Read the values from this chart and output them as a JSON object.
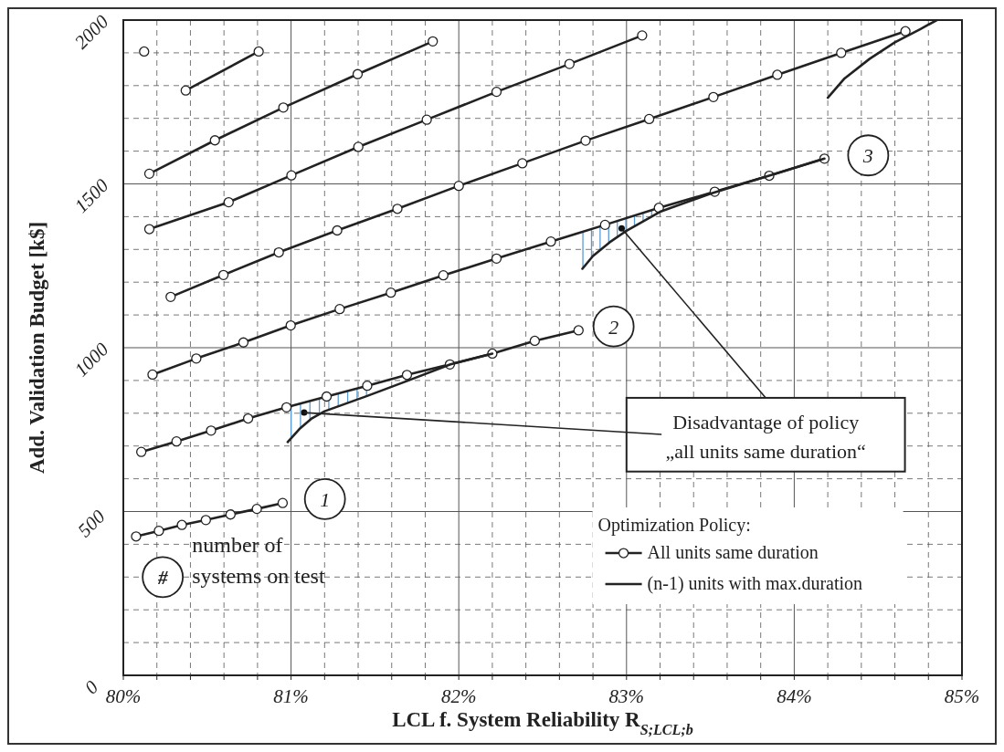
{
  "chart_data": {
    "type": "line",
    "xlabel": "LCL f. System Reliability R$_{S;LCL;b}$",
    "ylabel": "Add. Validation Budget [k$]",
    "legend_title": "Optimization Policy:",
    "legend": "bottom right",
    "marker": "circle",
    "grid": true,
    "xlim": [
      80,
      85
    ],
    "ylim": [
      0,
      2000
    ],
    "xticks": [
      {
        "value": 80,
        "label": "80%"
      },
      {
        "value": 80.2,
        "label": null
      },
      {
        "value": 80.4,
        "label": null
      },
      {
        "value": 80.6,
        "label": null
      },
      {
        "value": 80.8,
        "label": null
      },
      {
        "value": 81,
        "label": "81%"
      },
      {
        "value": 81.2,
        "label": null
      },
      {
        "value": 81.4,
        "label": null
      },
      {
        "value": 81.6,
        "label": null
      },
      {
        "value": 81.8,
        "label": null
      },
      {
        "value": 82,
        "label": "82%"
      },
      {
        "value": 82.2,
        "label": null
      },
      {
        "value": 82.4,
        "label": null
      },
      {
        "value": 82.6,
        "label": null
      },
      {
        "value": 82.8,
        "label": null
      },
      {
        "value": 83,
        "label": "83%"
      },
      {
        "value": 83.2,
        "label": null
      },
      {
        "value": 83.4,
        "label": null
      },
      {
        "value": 83.6,
        "label": null
      },
      {
        "value": 83.8,
        "label": null
      },
      {
        "value": 84,
        "label": "84%"
      },
      {
        "value": 84.2,
        "label": null
      },
      {
        "value": 84.4,
        "label": null
      },
      {
        "value": 84.6,
        "label": null
      },
      {
        "value": 84.8,
        "label": null
      },
      {
        "value": 85,
        "label": "85%"
      }
    ],
    "yticks": [
      0,
      {
        "value": 100,
        "label": null
      },
      {
        "value": 200,
        "label": null
      },
      {
        "value": 300,
        "label": null
      },
      {
        "value": 400,
        "label": null
      },
      500,
      {
        "value": 600,
        "label": null
      },
      {
        "value": 700,
        "label": null
      },
      {
        "value": 800,
        "label": null
      },
      {
        "value": 900,
        "label": null
      },
      1000,
      {
        "value": 1100,
        "label": null
      },
      {
        "value": 1200,
        "label": null
      },
      {
        "value": 1300,
        "label": null
      },
      {
        "value": 1400,
        "label": null
      },
      1500,
      {
        "value": 1600,
        "label": null
      },
      {
        "value": 1700,
        "label": null
      },
      {
        "value": 1800,
        "label": null
      },
      {
        "value": 1900,
        "label": null
      },
      2000
    ],
    "series": [
      {
        "name": "All units same duration",
        "color": "#222222",
        "x": [
          80.076,
          80.212,
          80.349,
          80.492,
          80.639,
          80.796,
          80.95
        ],
        "values": [
          424,
          441,
          459,
          474,
          491,
          508,
          526
        ]
      },
      {
        "color": "#222222",
        "x": [
          80.107,
          80.317,
          80.523,
          80.744,
          80.973,
          81.212,
          81.454,
          81.691,
          81.947,
          82.2,
          82.453,
          82.714
        ],
        "values": [
          682,
          714,
          747,
          784,
          818,
          851,
          884,
          917,
          949,
          982,
          1021,
          1053
        ]
      },
      {
        "name": "(n-1) units with max.duration",
        "color": "#222222",
        "marker": "none",
        "x": [
          80.98,
          81.05,
          81.12,
          81.2,
          81.45,
          81.7,
          81.95,
          82.2
        ],
        "values": [
          712,
          752,
          783,
          806,
          852,
          900,
          949,
          982
        ]
      },
      {
        "color": "#222222",
        "x": [
          80.174,
          80.435,
          80.716,
          80.998,
          81.29,
          81.595,
          81.908,
          82.225,
          82.549,
          82.872,
          83.193,
          83.526,
          83.851,
          84.18
        ],
        "values": [
          918,
          967,
          1016,
          1068,
          1118,
          1168,
          1221,
          1272,
          1324,
          1375,
          1427,
          1476,
          1525,
          1577
        ]
      },
      {
        "color": "#222222",
        "marker": "none",
        "x": [
          82.737,
          82.8,
          82.9,
          83.0,
          83.2,
          83.5,
          83.85,
          84.18
        ],
        "values": [
          1241,
          1280,
          1322,
          1357,
          1415,
          1470,
          1525,
          1577
        ]
      },
      {
        "color": "#222222",
        "x": [
          80.282,
          80.597,
          80.927,
          81.275,
          81.634,
          82.0,
          82.379,
          82.756,
          83.135,
          83.518,
          83.899,
          84.28,
          84.663
        ],
        "values": [
          1155,
          1222,
          1291,
          1358,
          1424,
          1494,
          1563,
          1632,
          1698,
          1765,
          1833,
          1900,
          1966
        ]
      },
      {
        "color": "#222222",
        "marker": "none",
        "x": [
          84.2,
          84.3,
          84.45,
          84.6,
          84.75,
          84.85
        ],
        "values": [
          1763,
          1822,
          1882,
          1932,
          1972,
          2000
        ]
      },
      {
        "color": "#222222",
        "x": [
          80.155,
          80.628,
          81.002,
          81.401,
          81.809,
          82.225,
          82.66,
          83.093
        ],
        "values": [
          1362,
          1444,
          1526,
          1613,
          1696,
          1781,
          1866,
          1953
        ]
      },
      {
        "color": "#222222",
        "x": [
          80.155,
          80.546,
          80.954,
          81.397,
          81.845
        ],
        "values": [
          1531,
          1633,
          1733,
          1835,
          1935
        ]
      },
      {
        "color": "#222222",
        "x": [
          80.372,
          80.807
        ],
        "values": [
          1785,
          1904
        ]
      },
      {
        "color": "#222222",
        "x": [
          80.124
        ],
        "values": [
          1904
        ]
      },
      {
        "type": "scatter",
        "color": "#111111",
        "x": [
          81.078,
          82.971
        ],
        "values": [
          802,
          1364
        ]
      }
    ],
    "annotations": [
      {
        "text": "1",
        "x": 81.202,
        "y": 538
      },
      {
        "text": "2",
        "x": 82.923,
        "y": 1065
      },
      {
        "text": "3",
        "x": 84.441,
        "y": 1587
      },
      "#",
      "number of\nsystems on test",
      {
        "text": "Disadvantage of policy\n„all units same duration“",
        "x": 81.078,
        "y": 802
      }
    ]
  }
}
